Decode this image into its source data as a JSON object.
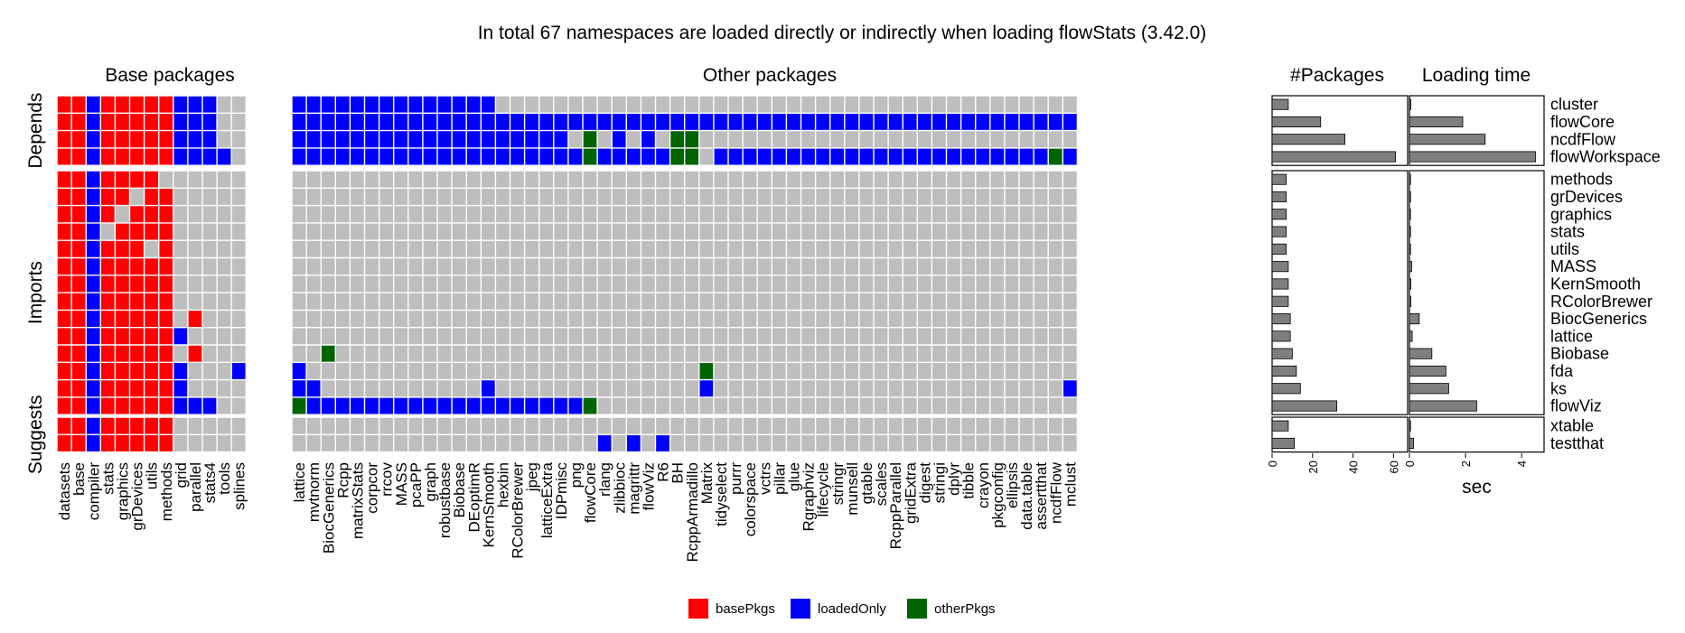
{
  "chart_data": {
    "type": "heatmap",
    "title": "In total 67 namespaces are loaded directly or indirectly when loading flowStats (3.42.0)",
    "panel_titles": {
      "base": "Base packages",
      "other": "Other packages",
      "packages": "#Packages",
      "time": "Loading time"
    },
    "row_groups": [
      "Depends",
      "Imports",
      "Suggests"
    ],
    "rows": [
      {
        "name": "cluster",
        "group": "Depends",
        "count": 8,
        "time": 0.05
      },
      {
        "name": "flowCore",
        "group": "Depends",
        "count": 24,
        "time": 1.9
      },
      {
        "name": "ncdfFlow",
        "group": "Depends",
        "count": 36,
        "time": 2.7
      },
      {
        "name": "flowWorkspace",
        "group": "Depends",
        "count": 61,
        "time": 4.5
      },
      {
        "name": "methods",
        "group": "Imports",
        "count": 7,
        "time": 0
      },
      {
        "name": "grDevices",
        "group": "Imports",
        "count": 7,
        "time": 0
      },
      {
        "name": "graphics",
        "group": "Imports",
        "count": 7,
        "time": 0
      },
      {
        "name": "stats",
        "group": "Imports",
        "count": 7,
        "time": 0
      },
      {
        "name": "utils",
        "group": "Imports",
        "count": 7,
        "time": 0
      },
      {
        "name": "MASS",
        "group": "Imports",
        "count": 8,
        "time": 0.08
      },
      {
        "name": "KernSmooth",
        "group": "Imports",
        "count": 8,
        "time": 0.05
      },
      {
        "name": "RColorBrewer",
        "group": "Imports",
        "count": 8,
        "time": 0.05
      },
      {
        "name": "BiocGenerics",
        "group": "Imports",
        "count": 9,
        "time": 0.35
      },
      {
        "name": "lattice",
        "group": "Imports",
        "count": 9,
        "time": 0.1
      },
      {
        "name": "Biobase",
        "group": "Imports",
        "count": 10,
        "time": 0.8
      },
      {
        "name": "fda",
        "group": "Imports",
        "count": 12,
        "time": 1.3
      },
      {
        "name": "ks",
        "group": "Imports",
        "count": 14,
        "time": 1.4
      },
      {
        "name": "flowViz",
        "group": "Imports",
        "count": 32,
        "time": 2.4
      },
      {
        "name": "xtable",
        "group": "Suggests",
        "count": 8,
        "time": 0
      },
      {
        "name": "testthat",
        "group": "Suggests",
        "count": 11,
        "time": 0.15
      }
    ],
    "base_columns": [
      "datasets",
      "base",
      "compiler",
      "stats",
      "graphics",
      "grDevices",
      "utils",
      "methods",
      "grid",
      "parallel",
      "stats4",
      "tools",
      "splines"
    ],
    "other_columns": [
      "lattice",
      "mvtnorm",
      "BiocGenerics",
      "Rcpp",
      "matrixStats",
      "corpcor",
      "rrcov",
      "MASS",
      "pcaPP",
      "graph",
      "robustbase",
      "Biobase",
      "DEoptimR",
      "KernSmooth",
      "hexbin",
      "RColorBrewer",
      "jpeg",
      "latticeExtra",
      "IDPmisc",
      "png",
      "flowCore",
      "rlang",
      "zlibbioc",
      "magrittr",
      "flowViz",
      "R6",
      "BH",
      "RcppArmadillo",
      "Matrix",
      "tidyselect",
      "purrr",
      "colorspace",
      "vctrs",
      "pillar",
      "glue",
      "Rgraphviz",
      "lifecycle",
      "stringr",
      "munsell",
      "gtable",
      "scales",
      "RcppParallel",
      "gridExtra",
      "digest",
      "stringi",
      "dplyr",
      "tibble",
      "crayon",
      "pkgconfig",
      "ellipsis",
      "data.table",
      "assertthat",
      "ncdfFlow",
      "mclust"
    ],
    "cells": {
      "cluster": {
        "R": "0,1,3,4,5,6,7",
        "B": "2,8,9,10,13,14,15,16,17,18,19,20,21,22,23,24,25,26"
      },
      "flowCore": {
        "R": "0,1,3,4,5,6,7",
        "B": "2,8,9,10,13,14,15,16,17,18,19,20,21,22,23,24,25,26,27,28,29,30,31,32,33,34,35,36,37,38,39,40,41,42,43,44,45,46,47,48,49,50,51,52,53,54,55,56,57,58,59,60,61,62,63,64,65,66"
      },
      "ncdfFlow": {
        "R": "0,1,3,4,5,6,7",
        "B": "2,8,9,10,13,14,15,16,17,18,19,20,21,22,23,24,25,26,27,28,29,30,31,35,37,40",
        "G": "33,39,40"
      },
      "flowWorkspace": {
        "R": "0,1,3,4,5,6,7",
        "B": "2,8,9,10,11,13,14,15,16,17,18,19,20,21,22,23,24,25,26,27,28,29,30,31,32,34,35,36,37,38,39,42,43,44,45,46,47,48,49,50,51,52,53,54,55,56,57,58,59,60,61,62,63,64,66",
        "G": "33,39,40,65"
      },
      "methods": {
        "R": "0,1,3,4,5,6",
        "B": "2"
      },
      "grDevices": {
        "R": "0,1,3,4,6,7",
        "B": "2"
      },
      "graphics": {
        "R": "0,1,3,5,6,7",
        "B": "2"
      },
      "stats": {
        "R": "0,1,4,5,6,7",
        "B": "2"
      },
      "utils": {
        "R": "0,1,3,4,5,7",
        "B": "2"
      },
      "MASS": {
        "R": "0,1,3,4,5,6,7",
        "B": "2"
      },
      "KernSmooth": {
        "R": "0,1,3,4,5,6,7",
        "B": "2"
      },
      "RColorBrewer": {
        "R": "0,1,3,4,5,6,7",
        "B": "2"
      },
      "BiocGenerics": {
        "R": "0,1,3,4,5,6,7,9",
        "B": "2"
      },
      "lattice": {
        "R": "0,1,3,4,5,6,7",
        "B": "2,8"
      },
      "Biobase": {
        "R": "0,1,3,4,5,6,7,9",
        "B": "2",
        "G": "15"
      },
      "fda": {
        "R": "0,1,3,4,5,6,7",
        "B": "2,8,12,13",
        "G": "41"
      },
      "ks": {
        "R": "0,1,3,4,5,6,7",
        "B": "2,8,13,14,26,41,66"
      },
      "flowViz": {
        "R": "0,1,3,4,5,6,7",
        "B": "2,8,9,10,14,15,16,17,18,19,20,21,22,23,24,25,26,27,28,29,30,31,32",
        "G": "13,33"
      },
      "xtable": {
        "R": "0,1,3,4,5,6,7",
        "B": "2"
      },
      "testthat": {
        "R": "0,1,3,4,5,6,7",
        "B": "2,34,36,38"
      }
    },
    "legend": [
      {
        "key": "R",
        "label": "basePkgs",
        "color": "#ff0000"
      },
      {
        "key": "B",
        "label": "loadedOnly",
        "color": "#0000ff"
      },
      {
        "key": "G",
        "label": "otherPkgs",
        "color": "#006400"
      }
    ],
    "empty_color": "#bebebe",
    "count_axis": {
      "ticks": [
        0,
        20,
        40,
        60
      ],
      "max": 67
    },
    "time_axis": {
      "ticks": [
        0,
        2,
        4
      ],
      "max": 4.8,
      "label": "sec"
    }
  }
}
